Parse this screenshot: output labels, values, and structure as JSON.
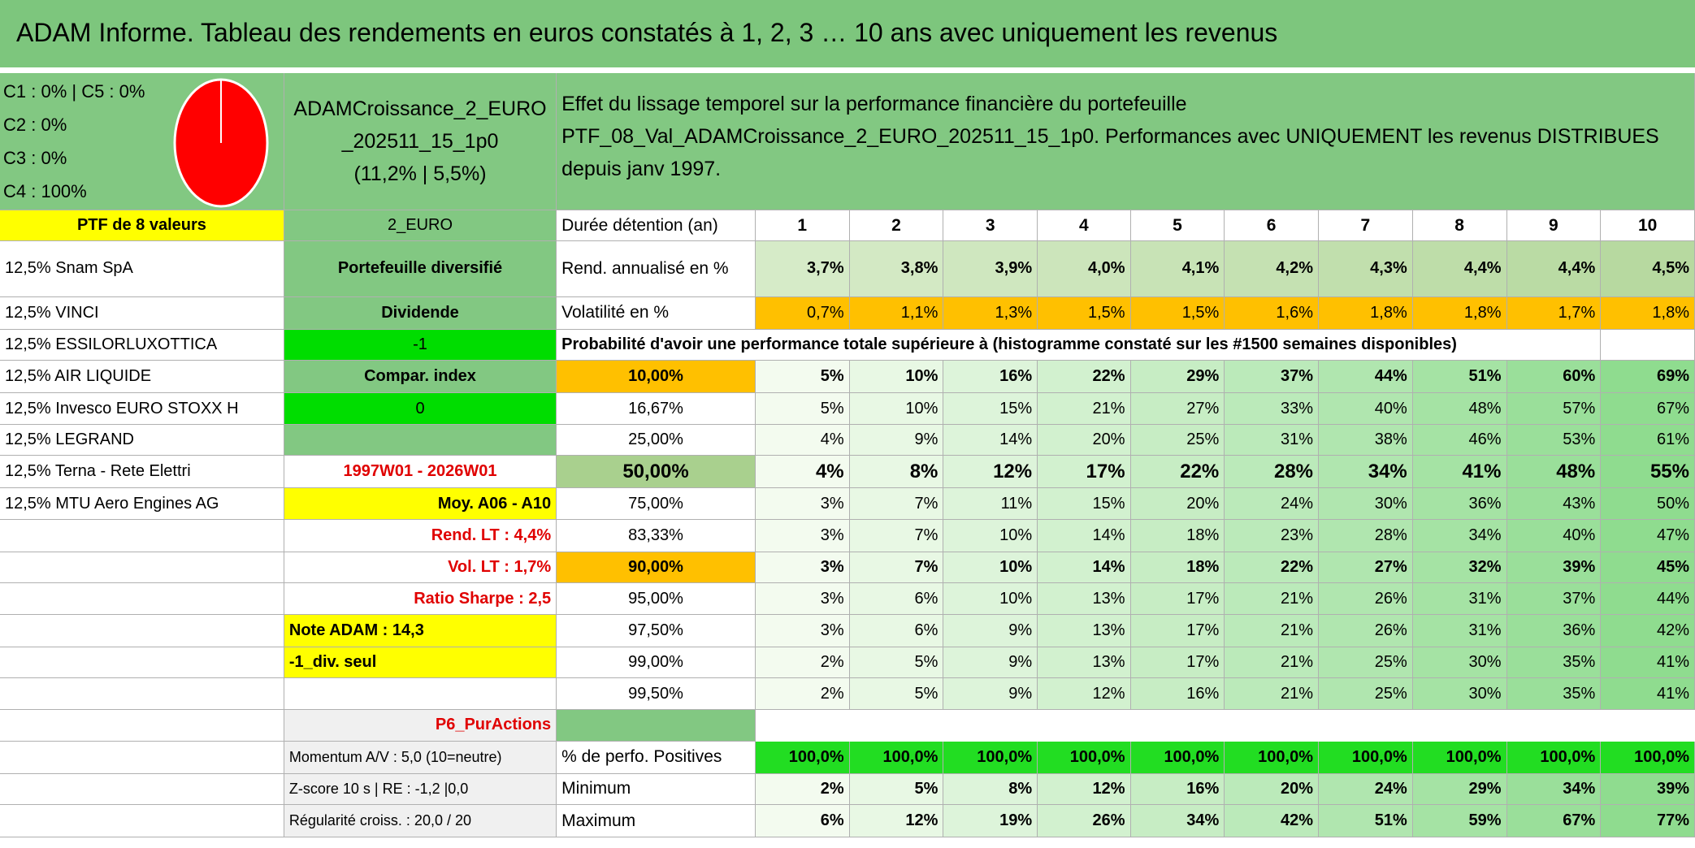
{
  "header": {
    "title": "ADAM Informe. Tableau des rendements en euros constatés à 1, 2, 3 … 10 ans avec uniquement les revenus"
  },
  "allocation": {
    "lines": [
      "C1 : 0% | C5 : 0%",
      "C2 : 0%",
      "C3 : 0%",
      "C4 : 100%"
    ]
  },
  "portfolio": {
    "name": "ADAMCroissance_2_EURO_202511_15_1p0",
    "stats": "(11,2% | 5,5%)"
  },
  "description": {
    "lines": [
      "Effet du lissage temporel sur la performance financière du portefeuille",
      "PTF_08_Val_ADAMCroissance_2_EURO_202511_15_1p0. Performances avec UNIQUEMENT les revenus DISTRIBUES depuis janv 1997."
    ]
  },
  "holdings": {
    "title": "PTF de 8 valeurs",
    "items": [
      "12,5% Snam SpA",
      "12,5% VINCI",
      "12,5% ESSILORLUXOTTICA",
      "12,5% AIR LIQUIDE",
      "12,5% Invesco EURO STOXX H",
      "12,5% LEGRAND",
      "12,5% Terna - Rete Elettri",
      "12,5% MTU Aero Engines AG"
    ]
  },
  "side": {
    "items": [
      "2_EURO",
      "Portefeuille diversifié",
      "Dividende",
      "-1",
      "Compar. index",
      "0",
      "1997W01 - 2026W01",
      "Moy. A06 - A10",
      "Rend. LT : 4,4%",
      "Vol. LT : 1,7%",
      "Ratio Sharpe : 2,5",
      "Note ADAM : 14,3",
      "-1_div. seul",
      "P6_PurActions",
      "Momentum A/V : 5,0 (10=neutre)",
      "Z-score 10 s | RE : -1,2 |0,0",
      "Régularité croiss. : 20,0 / 20"
    ]
  },
  "table": {
    "duration_label": "Durée détention (an)",
    "years": [
      "1",
      "2",
      "3",
      "4",
      "5",
      "6",
      "7",
      "8",
      "9",
      "10"
    ],
    "return": {
      "label": "Rend. annualisé en %",
      "values": [
        "3,7%",
        "3,8%",
        "3,9%",
        "4,0%",
        "4,1%",
        "4,2%",
        "4,3%",
        "4,4%",
        "4,4%",
        "4,5%"
      ]
    },
    "volatility": {
      "label": "Volatilité en %",
      "values": [
        "0,7%",
        "1,1%",
        "1,3%",
        "1,5%",
        "1,5%",
        "1,6%",
        "1,8%",
        "1,8%",
        "1,7%",
        "1,8%"
      ]
    },
    "probability_caption": "Probabilité d'avoir une performance totale supérieure à (histogramme constaté sur les #1500 semaines disponibles)",
    "probability_rows": [
      {
        "threshold": "10,00%",
        "values": [
          "5%",
          "10%",
          "16%",
          "22%",
          "29%",
          "37%",
          "44%",
          "51%",
          "60%",
          "69%"
        ]
      },
      {
        "threshold": "16,67%",
        "values": [
          "5%",
          "10%",
          "15%",
          "21%",
          "27%",
          "33%",
          "40%",
          "48%",
          "57%",
          "67%"
        ]
      },
      {
        "threshold": "25,00%",
        "values": [
          "4%",
          "9%",
          "14%",
          "20%",
          "25%",
          "31%",
          "38%",
          "46%",
          "53%",
          "61%"
        ]
      },
      {
        "threshold": "50,00%",
        "values": [
          "4%",
          "8%",
          "12%",
          "17%",
          "22%",
          "28%",
          "34%",
          "41%",
          "48%",
          "55%"
        ]
      },
      {
        "threshold": "75,00%",
        "values": [
          "3%",
          "7%",
          "11%",
          "15%",
          "20%",
          "24%",
          "30%",
          "36%",
          "43%",
          "50%"
        ]
      },
      {
        "threshold": "83,33%",
        "values": [
          "3%",
          "7%",
          "10%",
          "14%",
          "18%",
          "23%",
          "28%",
          "34%",
          "40%",
          "47%"
        ]
      },
      {
        "threshold": "90,00%",
        "values": [
          "3%",
          "7%",
          "10%",
          "14%",
          "18%",
          "22%",
          "27%",
          "32%",
          "39%",
          "45%"
        ]
      },
      {
        "threshold": "95,00%",
        "values": [
          "3%",
          "6%",
          "10%",
          "13%",
          "17%",
          "21%",
          "26%",
          "31%",
          "37%",
          "44%"
        ]
      },
      {
        "threshold": "97,50%",
        "values": [
          "3%",
          "6%",
          "9%",
          "13%",
          "17%",
          "21%",
          "26%",
          "31%",
          "36%",
          "42%"
        ]
      },
      {
        "threshold": "99,00%",
        "values": [
          "2%",
          "5%",
          "9%",
          "13%",
          "17%",
          "21%",
          "25%",
          "30%",
          "35%",
          "41%"
        ]
      },
      {
        "threshold": "99,50%",
        "values": [
          "2%",
          "5%",
          "9%",
          "12%",
          "16%",
          "21%",
          "25%",
          "30%",
          "35%",
          "41%"
        ]
      }
    ],
    "positives": {
      "label": "% de perfo. Positives",
      "values": [
        "100,0%",
        "100,0%",
        "100,0%",
        "100,0%",
        "100,0%",
        "100,0%",
        "100,0%",
        "100,0%",
        "100,0%",
        "100,0%"
      ]
    },
    "minimum": {
      "label": "Minimum",
      "values": [
        "2%",
        "5%",
        "8%",
        "12%",
        "16%",
        "20%",
        "24%",
        "29%",
        "34%",
        "39%"
      ]
    },
    "maximum": {
      "label": "Maximum",
      "values": [
        "6%",
        "12%",
        "19%",
        "26%",
        "34%",
        "42%",
        "51%",
        "59%",
        "67%",
        "77%"
      ]
    }
  }
}
